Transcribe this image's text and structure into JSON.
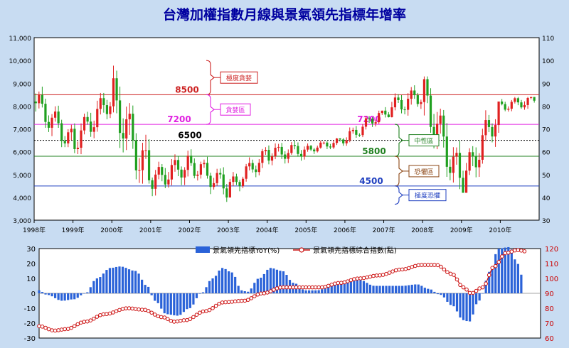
{
  "title": "台灣加權指數月線與景氣領先指標年增率",
  "colors": {
    "background": "#c8dcf2",
    "plot_bg": "#ffffff",
    "title": "#0000a0",
    "up_candle": "#e02020",
    "down_candle": "#20a020",
    "yoy_bars": "#2a62d8",
    "composite_line": "#cc1010",
    "line_8500": "#cc2020",
    "line_7200": "#e020e0",
    "line_6500": "#000000",
    "line_5800": "#208020",
    "line_4500": "#2040c0",
    "right_axis_lower": "#cc0000"
  },
  "chart_data": [
    {
      "type": "candlestick",
      "title": "台灣加權指數月線與景氣領先指標年增率",
      "x_ticks": [
        "1998年",
        "1999年",
        "2000年",
        "2001年",
        "2002年",
        "2003年",
        "2004年",
        "2005年",
        "2006年",
        "2007年",
        "2008年",
        "2009年",
        "2010年"
      ],
      "left_ticks": [
        "3,000",
        "4,000",
        "5,000",
        "6,000",
        "7,000",
        "8,000",
        "9,000",
        "10,000",
        "11,000"
      ],
      "right_ticks": [
        "30",
        "40",
        "50",
        "60",
        "70",
        "80",
        "90",
        "100",
        "110"
      ],
      "ylim": [
        3000,
        11000
      ],
      "ylim_right": [
        30,
        110
      ],
      "ranges_yearly": [
        {
          "year": "1998",
          "o": 8200,
          "h": 9400,
          "l": 6200,
          "c": 6400
        },
        {
          "year": "1999",
          "o": 6400,
          "h": 8700,
          "l": 5500,
          "c": 8400
        },
        {
          "year": "2000",
          "o": 8400,
          "h": 10400,
          "l": 4600,
          "c": 4700
        },
        {
          "year": "2001",
          "o": 4700,
          "h": 6200,
          "l": 3400,
          "c": 5500
        },
        {
          "year": "2002",
          "o": 5500,
          "h": 6500,
          "l": 3800,
          "c": 4400
        },
        {
          "year": "2003",
          "o": 4400,
          "h": 6200,
          "l": 4100,
          "c": 5900
        },
        {
          "year": "2004",
          "o": 5900,
          "h": 7100,
          "l": 5300,
          "c": 6100
        },
        {
          "year": "2005",
          "o": 6100,
          "h": 6600,
          "l": 5600,
          "c": 6500
        },
        {
          "year": "2006",
          "o": 6500,
          "h": 7800,
          "l": 6200,
          "c": 7800
        },
        {
          "year": "2007",
          "o": 7800,
          "h": 9800,
          "l": 7500,
          "c": 8500
        },
        {
          "year": "2008",
          "o": 8500,
          "h": 9300,
          "l": 4100,
          "c": 4600
        },
        {
          "year": "2009",
          "o": 4600,
          "h": 8200,
          "l": 4200,
          "c": 8000
        },
        {
          "year": "2010",
          "o": 8000,
          "h": 8400,
          "l": 7000,
          "c": 8300
        }
      ],
      "reference_lines": [
        {
          "label": "8500",
          "value": 8500,
          "style": "solid",
          "color": "#cc2020"
        },
        {
          "label": "7200",
          "value": 7200,
          "style": "solid",
          "color": "#e020e0"
        },
        {
          "label": "6500",
          "value": 6500,
          "style": "dotted",
          "color": "#000000"
        },
        {
          "label": "5800",
          "value": 5800,
          "style": "solid",
          "color": "#208020"
        },
        {
          "label": "4500",
          "value": 4500,
          "style": "solid",
          "color": "#2040c0"
        }
      ],
      "zone_annotations": [
        {
          "label": "極度貪婪",
          "from": 10000,
          "to": 8500,
          "color": "#cc2020"
        },
        {
          "label": "貪婪區",
          "from": 8500,
          "to": 7200,
          "color": "#e020e0"
        },
        {
          "label": "中性區",
          "from": 7200,
          "to": 5800,
          "color": "#208020"
        },
        {
          "label": "恐懼區",
          "from": 5800,
          "to": 4500,
          "color": "#8b4513"
        },
        {
          "label": "極度恐懼",
          "from": 4500,
          "to": 3700,
          "color": "#2040c0"
        }
      ]
    },
    {
      "type": "bar+line",
      "left_ticks": [
        "30",
        "20",
        "10",
        "0",
        "-10",
        "-20",
        "-30"
      ],
      "right_ticks": [
        "120",
        "110",
        "100",
        "90",
        "80",
        "70",
        "60"
      ],
      "ylim": [
        -30,
        30
      ],
      "ylim_right": [
        60,
        120
      ],
      "x_start": 1998.0,
      "step_months": 1,
      "legend": [
        "景氣領先指標YoY(%)",
        "景氣領先指標綜合指數(點)"
      ],
      "yoy_keypoints": [
        [
          1998.0,
          2
        ],
        [
          1998.2,
          -1
        ],
        [
          1998.6,
          -5
        ],
        [
          1998.9,
          -4
        ],
        [
          1999.2,
          0
        ],
        [
          1999.5,
          10
        ],
        [
          1999.85,
          17
        ],
        [
          2000.1,
          18
        ],
        [
          2000.5,
          15
        ],
        [
          2000.8,
          5
        ],
        [
          2001.0,
          -5
        ],
        [
          2001.3,
          -14
        ],
        [
          2001.6,
          -15
        ],
        [
          2001.9,
          -10
        ],
        [
          2002.2,
          0
        ],
        [
          2002.5,
          10
        ],
        [
          2002.75,
          17
        ],
        [
          2003.0,
          14
        ],
        [
          2003.25,
          2
        ],
        [
          2003.4,
          1
        ],
        [
          2003.7,
          10
        ],
        [
          2004.0,
          17
        ],
        [
          2004.3,
          15
        ],
        [
          2004.6,
          7
        ],
        [
          2004.9,
          2
        ],
        [
          2005.2,
          2
        ],
        [
          2005.6,
          5
        ],
        [
          2006.0,
          9
        ],
        [
          2006.3,
          9
        ],
        [
          2006.7,
          5
        ],
        [
          2007.0,
          5
        ],
        [
          2007.4,
          5
        ],
        [
          2007.8,
          6
        ],
        [
          2008.1,
          3
        ],
        [
          2008.4,
          -1
        ],
        [
          2008.7,
          -8
        ],
        [
          2009.0,
          -18
        ],
        [
          2009.15,
          -19
        ],
        [
          2009.4,
          -5
        ],
        [
          2009.7,
          15
        ],
        [
          2009.9,
          30
        ],
        [
          2010.2,
          31
        ],
        [
          2010.4,
          20
        ],
        [
          2010.55,
          10
        ]
      ],
      "composite_keypoints": [
        [
          1998.0,
          68
        ],
        [
          1998.4,
          65
        ],
        [
          1998.7,
          66
        ],
        [
          1999.2,
          71
        ],
        [
          1999.7,
          76
        ],
        [
          2000.3,
          80
        ],
        [
          2000.7,
          79
        ],
        [
          2001.2,
          74
        ],
        [
          2001.5,
          71
        ],
        [
          2001.8,
          72
        ],
        [
          2002.3,
          78
        ],
        [
          2002.8,
          84
        ],
        [
          2003.3,
          85
        ],
        [
          2003.8,
          90
        ],
        [
          2004.3,
          94
        ],
        [
          2004.8,
          94
        ],
        [
          2005.3,
          94
        ],
        [
          2005.8,
          97
        ],
        [
          2006.3,
          100
        ],
        [
          2006.8,
          102
        ],
        [
          2007.4,
          106
        ],
        [
          2007.9,
          109
        ],
        [
          2008.3,
          109
        ],
        [
          2008.7,
          103
        ],
        [
          2009.0,
          94
        ],
        [
          2009.2,
          90
        ],
        [
          2009.5,
          94
        ],
        [
          2009.8,
          108
        ],
        [
          2010.1,
          117
        ],
        [
          2010.4,
          119
        ],
        [
          2010.65,
          118
        ]
      ]
    }
  ]
}
